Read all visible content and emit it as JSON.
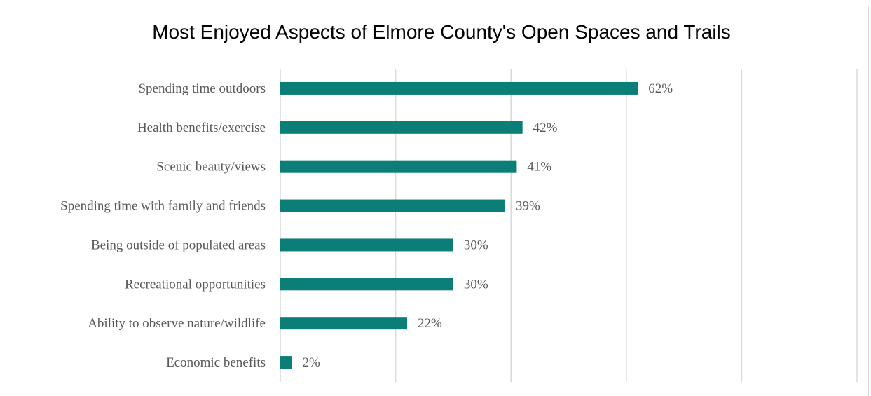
{
  "chart_data": {
    "type": "bar",
    "orientation": "horizontal",
    "title": "Most Enjoyed Aspects of Elmore County's Open Spaces and Trails",
    "categories": [
      "Spending time outdoors",
      "Health benefits/exercise",
      "Scenic beauty/views",
      "Spending time with family and friends",
      "Being outside of populated areas",
      "Recreational opportunities",
      "Ability to observe nature/wildlife",
      "Economic benefits"
    ],
    "values": [
      62,
      42,
      41,
      39,
      30,
      30,
      22,
      2
    ],
    "value_labels": [
      "62%",
      "42%",
      "41%",
      "39%",
      "30%",
      "30%",
      "22%",
      "2%"
    ],
    "xlim": [
      0,
      100
    ],
    "grid": true,
    "legend": "none",
    "xlabel": "",
    "ylabel": "",
    "colors": {
      "bar": "#0b7e78",
      "grid": "#d9d9d9",
      "text": "#595959"
    }
  }
}
